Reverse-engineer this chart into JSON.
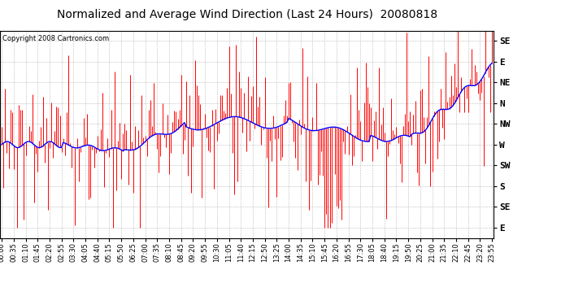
{
  "title": "Normalized and Average Wind Direction (Last 24 Hours)  20080818",
  "copyright": "Copyright 2008 Cartronics.com",
  "y_labels_top_to_bottom": [
    "SE",
    "E",
    "NE",
    "N",
    "NW",
    "W",
    "SW",
    "S",
    "SE",
    "E"
  ],
  "ylim": [
    -0.5,
    9.5
  ],
  "background_color": "#ffffff",
  "bar_color": "#ff0000",
  "line_color": "#0000ff",
  "grid_color": "#bbbbbb",
  "title_fontsize": 10,
  "copyright_fontsize": 6,
  "tick_fontsize": 6,
  "ytick_fontsize": 8
}
